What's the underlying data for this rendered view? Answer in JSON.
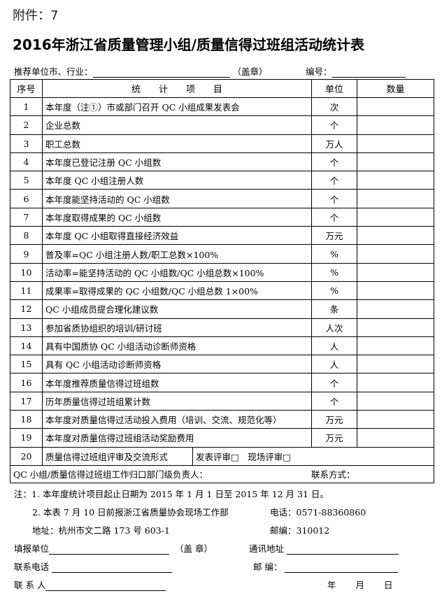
{
  "attachment": "附件：7",
  "title": "2016年浙江省质量管理小组/质量信得过班组活动统计表",
  "recommend_label": "推荐单位市、行业：",
  "seal": "（盖章）",
  "number_label": "编号：",
  "headers": [
    "序号",
    "统　　计　　项　　目",
    "单位",
    "数量"
  ],
  "rows": [
    {
      "no": "1",
      "item": "本年度（注①）市或部门召开 QC 小组成果发表会",
      "unit": "次"
    },
    {
      "no": "2",
      "item": "企业总数",
      "unit": "个"
    },
    {
      "no": "3",
      "item": "职工总数",
      "unit": "万人"
    },
    {
      "no": "4",
      "item": "本年度已登记注册 QC 小组数",
      "unit": "个"
    },
    {
      "no": "5",
      "item": "本年度 QC 小组注册人数",
      "unit": "个"
    },
    {
      "no": "6",
      "item": "本年度能坚持活动的 QC 小组数",
      "unit": "个"
    },
    {
      "no": "7",
      "item": "本年度取得成果的 QC 小组数",
      "unit": "个"
    },
    {
      "no": "8",
      "item": "本年度 QC 小组取得直接经济效益",
      "unit": "万元"
    },
    {
      "no": "9",
      "item": "普及率=QC 小组注册人数/职工总数×100%",
      "unit": "%"
    },
    {
      "no": "10",
      "item": "活动率=能坚持活动的 QC 小组数/QC 小组总数×100%",
      "unit": "%"
    },
    {
      "no": "11",
      "item": "成果率=取得成果的 QC 小组数/QC 小组总数 1×00%",
      "unit": "%"
    },
    {
      "no": "12",
      "item": "QC 小组成员提合理化建议数",
      "unit": "条"
    },
    {
      "no": "13",
      "item": "参加省质协组织的培训/研讨班",
      "unit": "人次"
    },
    {
      "no": "14",
      "item": "具有中国质协 QC 小组活动诊断师资格",
      "unit": "人"
    },
    {
      "no": "15",
      "item": "具有 QC 小组活动诊断师资格",
      "unit": "人"
    },
    {
      "no": "16",
      "item": "本年度推荐质量信得过班组数",
      "unit": "个"
    },
    {
      "no": "17",
      "item": "历年质量信得过班组累计数",
      "unit": "个"
    },
    {
      "no": "18",
      "item": "本年度对质量信得过活动投入费用（培训、交流、规范化等）",
      "unit": "万元"
    },
    {
      "no": "19",
      "item": "本年度对质量信得过班组活动奖励费用",
      "unit": "万元"
    }
  ],
  "row20": {
    "no": "20",
    "item": "质量信得过班组评审及交流形式",
    "options": "发表评审□　现场评审□"
  },
  "responsible": {
    "label": "QC 小组/质量信得过班组工作归口部门级负责人：",
    "contact": "联系方式："
  },
  "notes": {
    "n1": "注：1. 本年度统计项目起止日期为 2015 年 1 月 1 日至 2015 年 12 月 31 日。",
    "n2": "2. 本表 7 月 10 日前报浙江省质量协会现场工作部",
    "phone": "电话：0571-88360860",
    "address": "地址：杭州市文二路 173 号 603-1",
    "postcode": "邮编：310012"
  },
  "footer": {
    "unit": "填报单位",
    "seal": "（盖 章）",
    "addr": "通讯地址",
    "phone": "联系电话",
    "post": "邮 编：",
    "person": "联 系 人",
    "year": "年",
    "month": "月",
    "day": "日"
  }
}
